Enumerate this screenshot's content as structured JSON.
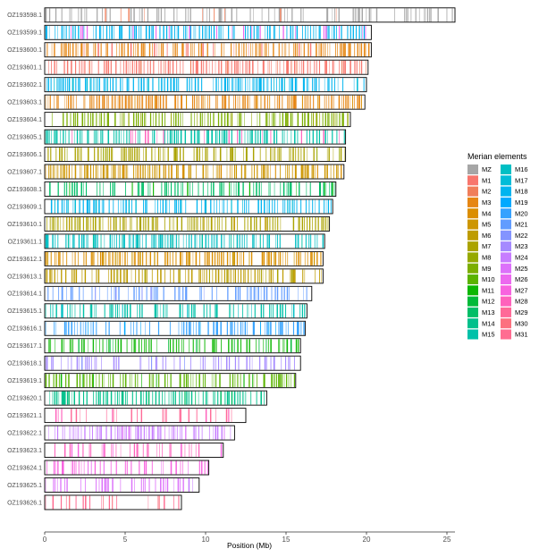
{
  "chart_data": {
    "type": "chromosome-painting",
    "xlabel": "Position (Mb)",
    "xlim": [
      0,
      25.5
    ],
    "xticks": [
      0,
      5,
      10,
      15,
      20,
      25
    ],
    "legend": {
      "title": "Merian elements",
      "entries": [
        {
          "name": "MZ",
          "color": "#a6a6a6"
        },
        {
          "name": "M1",
          "color": "#f8766d"
        },
        {
          "name": "M2",
          "color": "#f07e5a"
        },
        {
          "name": "M3",
          "color": "#e68613"
        },
        {
          "name": "M4",
          "color": "#db8e00"
        },
        {
          "name": "M5",
          "color": "#cd9600"
        },
        {
          "name": "M6",
          "color": "#be9c00"
        },
        {
          "name": "M7",
          "color": "#aba300"
        },
        {
          "name": "M8",
          "color": "#96a900"
        },
        {
          "name": "M9",
          "color": "#7cae00"
        },
        {
          "name": "M10",
          "color": "#5bb300"
        },
        {
          "name": "M11",
          "color": "#0cb702"
        },
        {
          "name": "M12",
          "color": "#00ba38"
        },
        {
          "name": "M13",
          "color": "#00be67"
        },
        {
          "name": "M14",
          "color": "#00c08b"
        },
        {
          "name": "M15",
          "color": "#00c1a9"
        },
        {
          "name": "M16",
          "color": "#00bfc4"
        },
        {
          "name": "M17",
          "color": "#00bcd8"
        },
        {
          "name": "M18",
          "color": "#00b4ef"
        },
        {
          "name": "M19",
          "color": "#00a9ff"
        },
        {
          "name": "M20",
          "color": "#35a2ff"
        },
        {
          "name": "M21",
          "color": "#619cff"
        },
        {
          "name": "M22",
          "color": "#8494ff"
        },
        {
          "name": "M23",
          "color": "#a58aff"
        },
        {
          "name": "M24",
          "color": "#c77cff"
        },
        {
          "name": "M25",
          "color": "#dc71fa"
        },
        {
          "name": "M26",
          "color": "#ec69ef"
        },
        {
          "name": "M27",
          "color": "#f863df"
        },
        {
          "name": "M28",
          "color": "#ff62bc"
        },
        {
          "name": "M29",
          "color": "#ff6a98"
        },
        {
          "name": "M30",
          "color": "#fc717f"
        },
        {
          "name": "M31",
          "color": "#ff6c91"
        }
      ]
    },
    "chromosomes": [
      {
        "name": "OZ193598.1",
        "length": 25.5,
        "main": "MZ",
        "alt": "M2",
        "density": 0.55
      },
      {
        "name": "OZ193599.1",
        "length": 20.3,
        "main": "M18",
        "alt": "M26",
        "density": 0.75
      },
      {
        "name": "OZ193600.1",
        "length": 20.3,
        "main": "M3",
        "alt": "M1",
        "density": 0.8
      },
      {
        "name": "OZ193601.1",
        "length": 20.1,
        "main": "M1",
        "alt": "M2",
        "density": 0.8
      },
      {
        "name": "OZ193602.1",
        "length": 20.0,
        "main": "M18",
        "alt": "M17",
        "density": 0.8
      },
      {
        "name": "OZ193603.1",
        "length": 19.9,
        "main": "M3",
        "alt": "M4",
        "density": 0.8
      },
      {
        "name": "OZ193604.1",
        "length": 19.0,
        "main": "M9",
        "alt": "M8",
        "density": 0.7
      },
      {
        "name": "OZ193605.1",
        "length": 18.7,
        "main": "M15",
        "alt": "M28",
        "density": 0.75
      },
      {
        "name": "OZ193606.1",
        "length": 18.7,
        "main": "M7",
        "alt": "M8",
        "density": 0.65
      },
      {
        "name": "OZ193607.1",
        "length": 18.6,
        "main": "M5",
        "alt": "M4",
        "density": 0.75
      },
      {
        "name": "OZ193608.1",
        "length": 18.1,
        "main": "M13",
        "alt": "M11",
        "density": 0.65
      },
      {
        "name": "OZ193609.1",
        "length": 17.9,
        "main": "M18",
        "alt": "M17",
        "density": 0.7
      },
      {
        "name": "OZ193610.1",
        "length": 17.7,
        "main": "M7",
        "alt": "M6",
        "density": 0.75
      },
      {
        "name": "OZ193611.1",
        "length": 17.4,
        "main": "M16",
        "alt": "M15",
        "density": 0.7
      },
      {
        "name": "OZ193612.1",
        "length": 17.3,
        "main": "M4",
        "alt": "M5",
        "density": 0.75
      },
      {
        "name": "OZ193613.1",
        "length": 17.3,
        "main": "M6",
        "alt": "M7",
        "density": 0.7
      },
      {
        "name": "OZ193614.1",
        "length": 16.6,
        "main": "M21",
        "alt": "M22",
        "density": 0.45
      },
      {
        "name": "OZ193615.1",
        "length": 16.3,
        "main": "M15",
        "alt": "M16",
        "density": 0.6
      },
      {
        "name": "OZ193616.1",
        "length": 16.2,
        "main": "M20",
        "alt": "M19",
        "density": 0.6
      },
      {
        "name": "OZ193617.1",
        "length": 15.9,
        "main": "M11",
        "alt": "M12",
        "density": 0.7
      },
      {
        "name": "OZ193618.1",
        "length": 15.9,
        "main": "M23",
        "alt": "M22",
        "density": 0.55
      },
      {
        "name": "OZ193619.1",
        "length": 15.6,
        "main": "M10",
        "alt": "M11",
        "density": 0.7
      },
      {
        "name": "OZ193620.1",
        "length": 13.8,
        "main": "M14",
        "alt": "M13",
        "density": 0.7
      },
      {
        "name": "OZ193621.1",
        "length": 12.5,
        "main": "M29",
        "alt": "M28",
        "density": 0.3
      },
      {
        "name": "OZ193622.1",
        "length": 11.8,
        "main": "M24",
        "alt": "M25",
        "density": 0.6
      },
      {
        "name": "OZ193623.1",
        "length": 11.1,
        "main": "M28",
        "alt": "M27",
        "density": 0.45
      },
      {
        "name": "OZ193624.1",
        "length": 10.2,
        "main": "M27",
        "alt": "M26",
        "density": 0.4
      },
      {
        "name": "OZ193625.1",
        "length": 9.6,
        "main": "M25",
        "alt": "M24",
        "density": 0.55
      },
      {
        "name": "OZ193626.1",
        "length": 8.5,
        "main": "M31",
        "alt": "M30",
        "density": 0.4
      }
    ]
  }
}
